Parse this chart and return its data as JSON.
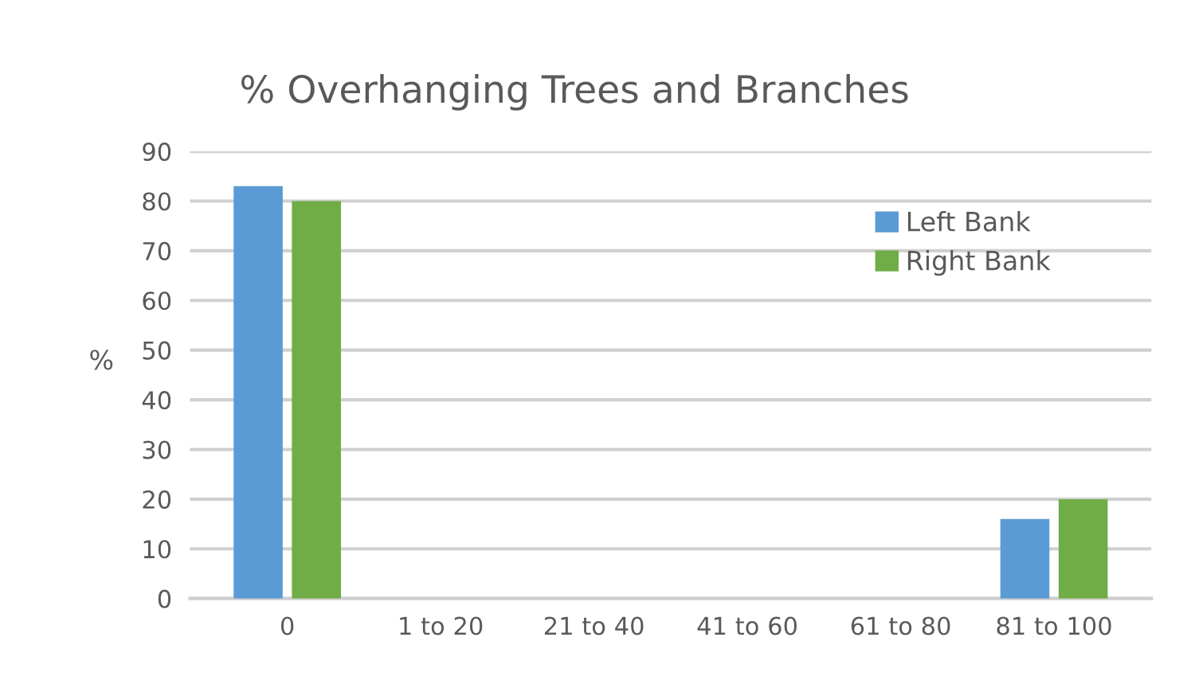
{
  "chart_data": {
    "type": "bar",
    "title": "% Overhanging Trees and Branches",
    "ylabel": "%",
    "categories": [
      "0",
      "1 to 20",
      "21 to 40",
      "41 to 60",
      "61 to 80",
      "81 to 100"
    ],
    "series": [
      {
        "name": "Left Bank",
        "color": "#5b9bd5",
        "values": [
          83,
          0,
          0,
          0,
          0,
          16
        ]
      },
      {
        "name": "Right Bank",
        "color": "#70ad47",
        "values": [
          80,
          0,
          0,
          0,
          0,
          20
        ]
      }
    ],
    "ylim": [
      0,
      90
    ],
    "yticks": [
      0,
      10,
      20,
      30,
      40,
      50,
      60,
      70,
      80,
      90
    ],
    "grid": "y",
    "legend": "top right"
  }
}
